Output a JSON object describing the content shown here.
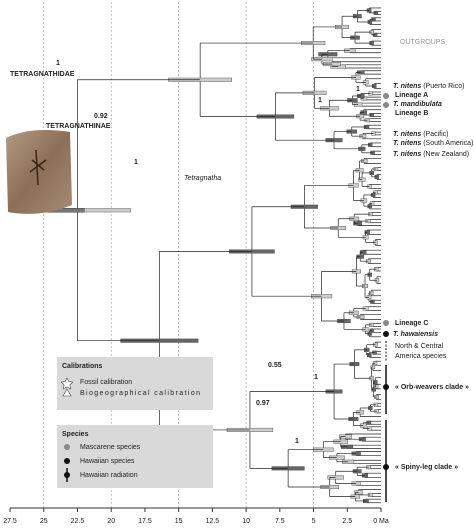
{
  "axis": {
    "ticks": [
      27.5,
      25,
      22.5,
      20,
      17.5,
      15,
      12.5,
      10,
      7.5,
      5,
      2.5,
      {
        "value": 0,
        "label": "0 Ma"
      }
    ]
  },
  "clades": [
    "TETRAGNATHIDAE",
    "TETRAGNATHINAE",
    "Tetragnatha"
  ],
  "outgroups": "OUTGROUPS",
  "support_values": [
    1,
    0.92,
    1,
    1,
    1,
    0.55,
    1,
    0.97,
    1
  ],
  "tips": [
    {
      "species": "T. nitens",
      "locality": "(Puerto Rico)"
    },
    {
      "lineage": "Lineage A"
    },
    {
      "species": "T. mandibulata"
    },
    {
      "lineage": "Lineage B"
    },
    {
      "species": "T. nitens",
      "locality": "(Pacific)"
    },
    {
      "species": "T. nitens",
      "locality": "(South America)"
    },
    {
      "species": "T. nitens",
      "locality": "(New Zealand)"
    },
    {
      "lineage": "Lineage C"
    },
    {
      "species": "T. hawaiensis"
    },
    {
      "group": "North & Central"
    },
    {
      "group": "America species"
    },
    {
      "group": "« Orb-weavers clade »"
    },
    {
      "group": "« Spiny-leg clade »"
    }
  ],
  "legend": {
    "calibrations": {
      "title": "Calibrations",
      "items": [
        "Fossil calibration",
        "Biogeographical calibration"
      ]
    },
    "species": {
      "title": "Species",
      "items": [
        "Mascarene species",
        "Hawaiian species",
        "Hawaiian radiation"
      ]
    }
  }
}
